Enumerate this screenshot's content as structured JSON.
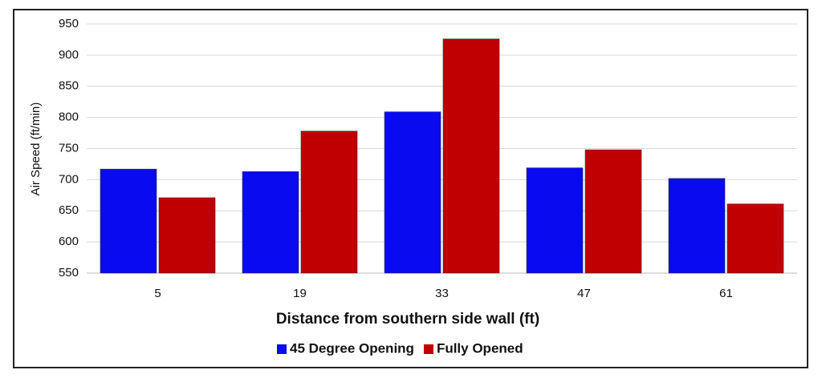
{
  "chart_data": {
    "type": "bar",
    "x_label": "Distance from southern side wall (ft)",
    "y_label": "Air Speed (ft/min)",
    "categories": [
      "5",
      "19",
      "33",
      "47",
      "61"
    ],
    "series": [
      {
        "name": "45 Degree Opening",
        "color": "#0a0af0",
        "values": [
          717,
          713,
          809,
          719,
          702
        ]
      },
      {
        "name": "Fully Opened",
        "color": "#c00000",
        "values": [
          671,
          778,
          926,
          748,
          661
        ]
      }
    ],
    "ylim": [
      550,
      950
    ],
    "yticks": [
      550,
      600,
      650,
      700,
      750,
      800,
      850,
      900,
      950
    ],
    "grid": true,
    "legend": "bottom"
  }
}
